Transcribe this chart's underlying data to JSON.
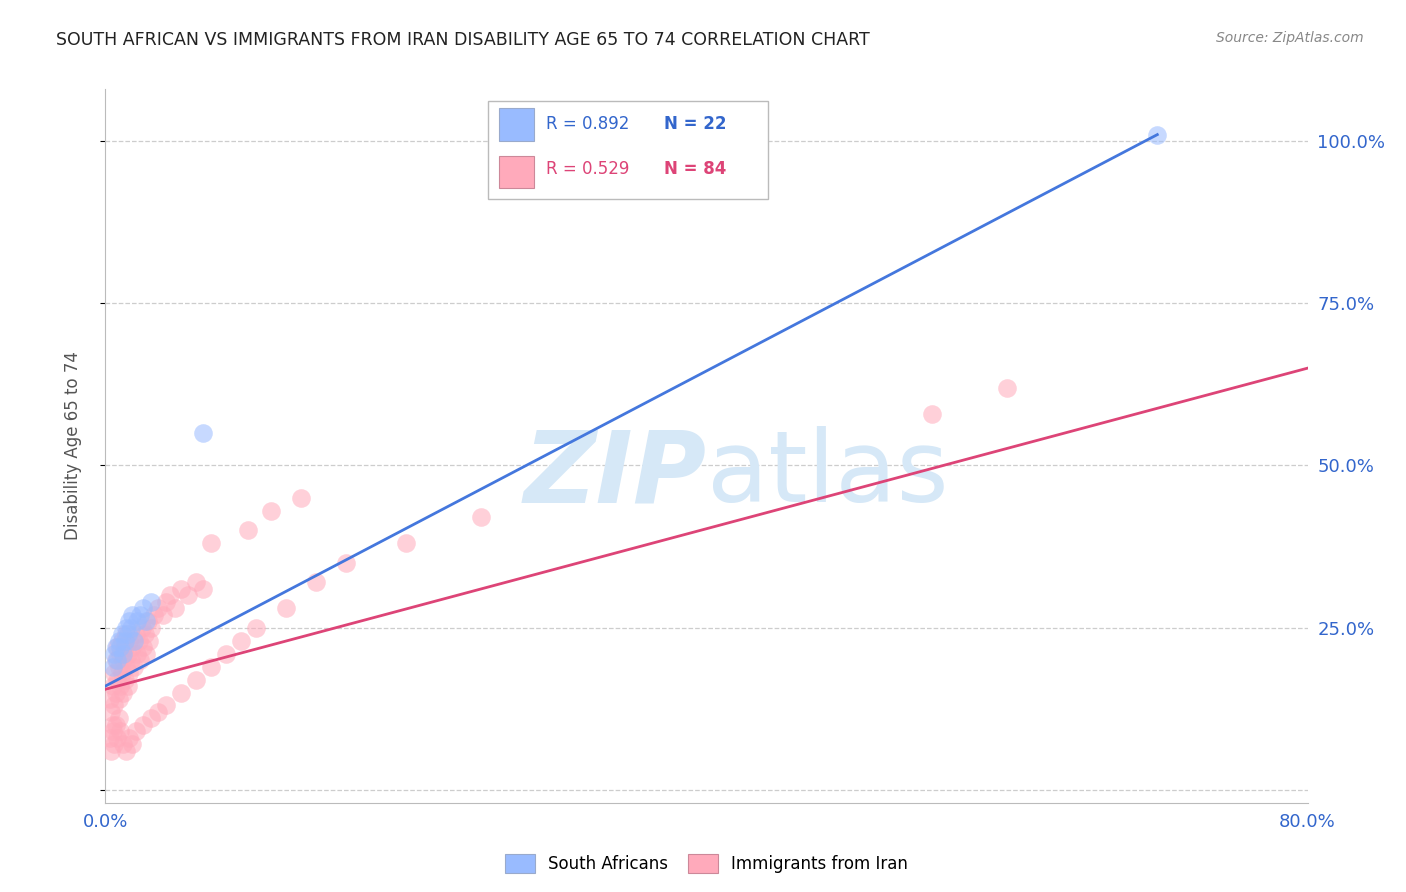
{
  "title": "SOUTH AFRICAN VS IMMIGRANTS FROM IRAN DISABILITY AGE 65 TO 74 CORRELATION CHART",
  "source": "Source: ZipAtlas.com",
  "ylabel_left": "Disability Age 65 to 74",
  "xlim": [
    0.0,
    0.8
  ],
  "ylim": [
    -0.02,
    1.08
  ],
  "grid_color": "#c8c8c8",
  "background_color": "#ffffff",
  "watermark_text": "ZIPatlas",
  "watermark_color": "#d6e8f7",
  "blue_color": "#99bbff",
  "pink_color": "#ffaabb",
  "blue_line_color": "#4477dd",
  "pink_line_color": "#dd4477",
  "legend_blue_R": "R = 0.892",
  "legend_blue_N": "N = 22",
  "legend_pink_R": "R = 0.529",
  "legend_pink_N": "N = 84",
  "sa_line_x0": 0.0,
  "sa_line_y0": 0.16,
  "sa_line_x1": 0.7,
  "sa_line_y1": 1.01,
  "ir_line_x0": 0.0,
  "ir_line_y0": 0.155,
  "ir_line_x1": 0.8,
  "ir_line_y1": 0.65,
  "south_african_x": [
    0.005,
    0.006,
    0.007,
    0.008,
    0.009,
    0.01,
    0.011,
    0.012,
    0.013,
    0.014,
    0.015,
    0.016,
    0.017,
    0.018,
    0.019,
    0.021,
    0.023,
    0.025,
    0.027,
    0.03,
    0.065,
    0.7
  ],
  "south_african_y": [
    0.19,
    0.21,
    0.22,
    0.2,
    0.23,
    0.22,
    0.24,
    0.21,
    0.23,
    0.25,
    0.24,
    0.26,
    0.25,
    0.27,
    0.23,
    0.26,
    0.27,
    0.28,
    0.26,
    0.29,
    0.55,
    1.01
  ],
  "iran_x": [
    0.003,
    0.004,
    0.005,
    0.005,
    0.006,
    0.006,
    0.007,
    0.007,
    0.008,
    0.008,
    0.009,
    0.009,
    0.01,
    0.01,
    0.011,
    0.011,
    0.012,
    0.012,
    0.013,
    0.013,
    0.014,
    0.014,
    0.015,
    0.015,
    0.016,
    0.016,
    0.017,
    0.018,
    0.019,
    0.02,
    0.021,
    0.022,
    0.023,
    0.024,
    0.025,
    0.026,
    0.027,
    0.028,
    0.029,
    0.03,
    0.032,
    0.035,
    0.038,
    0.04,
    0.043,
    0.046,
    0.05,
    0.055,
    0.06,
    0.065,
    0.003,
    0.004,
    0.005,
    0.006,
    0.007,
    0.008,
    0.009,
    0.01,
    0.012,
    0.014,
    0.016,
    0.018,
    0.02,
    0.025,
    0.03,
    0.035,
    0.04,
    0.05,
    0.06,
    0.07,
    0.08,
    0.09,
    0.1,
    0.12,
    0.14,
    0.16,
    0.2,
    0.25,
    0.07,
    0.095,
    0.11,
    0.13,
    0.55,
    0.6
  ],
  "iran_y": [
    0.14,
    0.12,
    0.16,
    0.1,
    0.18,
    0.13,
    0.2,
    0.15,
    0.22,
    0.17,
    0.19,
    0.14,
    0.21,
    0.16,
    0.23,
    0.18,
    0.2,
    0.15,
    0.22,
    0.17,
    0.24,
    0.19,
    0.21,
    0.16,
    0.23,
    0.18,
    0.2,
    0.22,
    0.19,
    0.24,
    0.21,
    0.23,
    0.2,
    0.25,
    0.22,
    0.24,
    0.21,
    0.26,
    0.23,
    0.25,
    0.27,
    0.28,
    0.27,
    0.29,
    0.3,
    0.28,
    0.31,
    0.3,
    0.32,
    0.31,
    0.08,
    0.06,
    0.09,
    0.07,
    0.1,
    0.08,
    0.11,
    0.09,
    0.07,
    0.06,
    0.08,
    0.07,
    0.09,
    0.1,
    0.11,
    0.12,
    0.13,
    0.15,
    0.17,
    0.19,
    0.21,
    0.23,
    0.25,
    0.28,
    0.32,
    0.35,
    0.38,
    0.42,
    0.38,
    0.4,
    0.43,
    0.45,
    0.58,
    0.62
  ]
}
